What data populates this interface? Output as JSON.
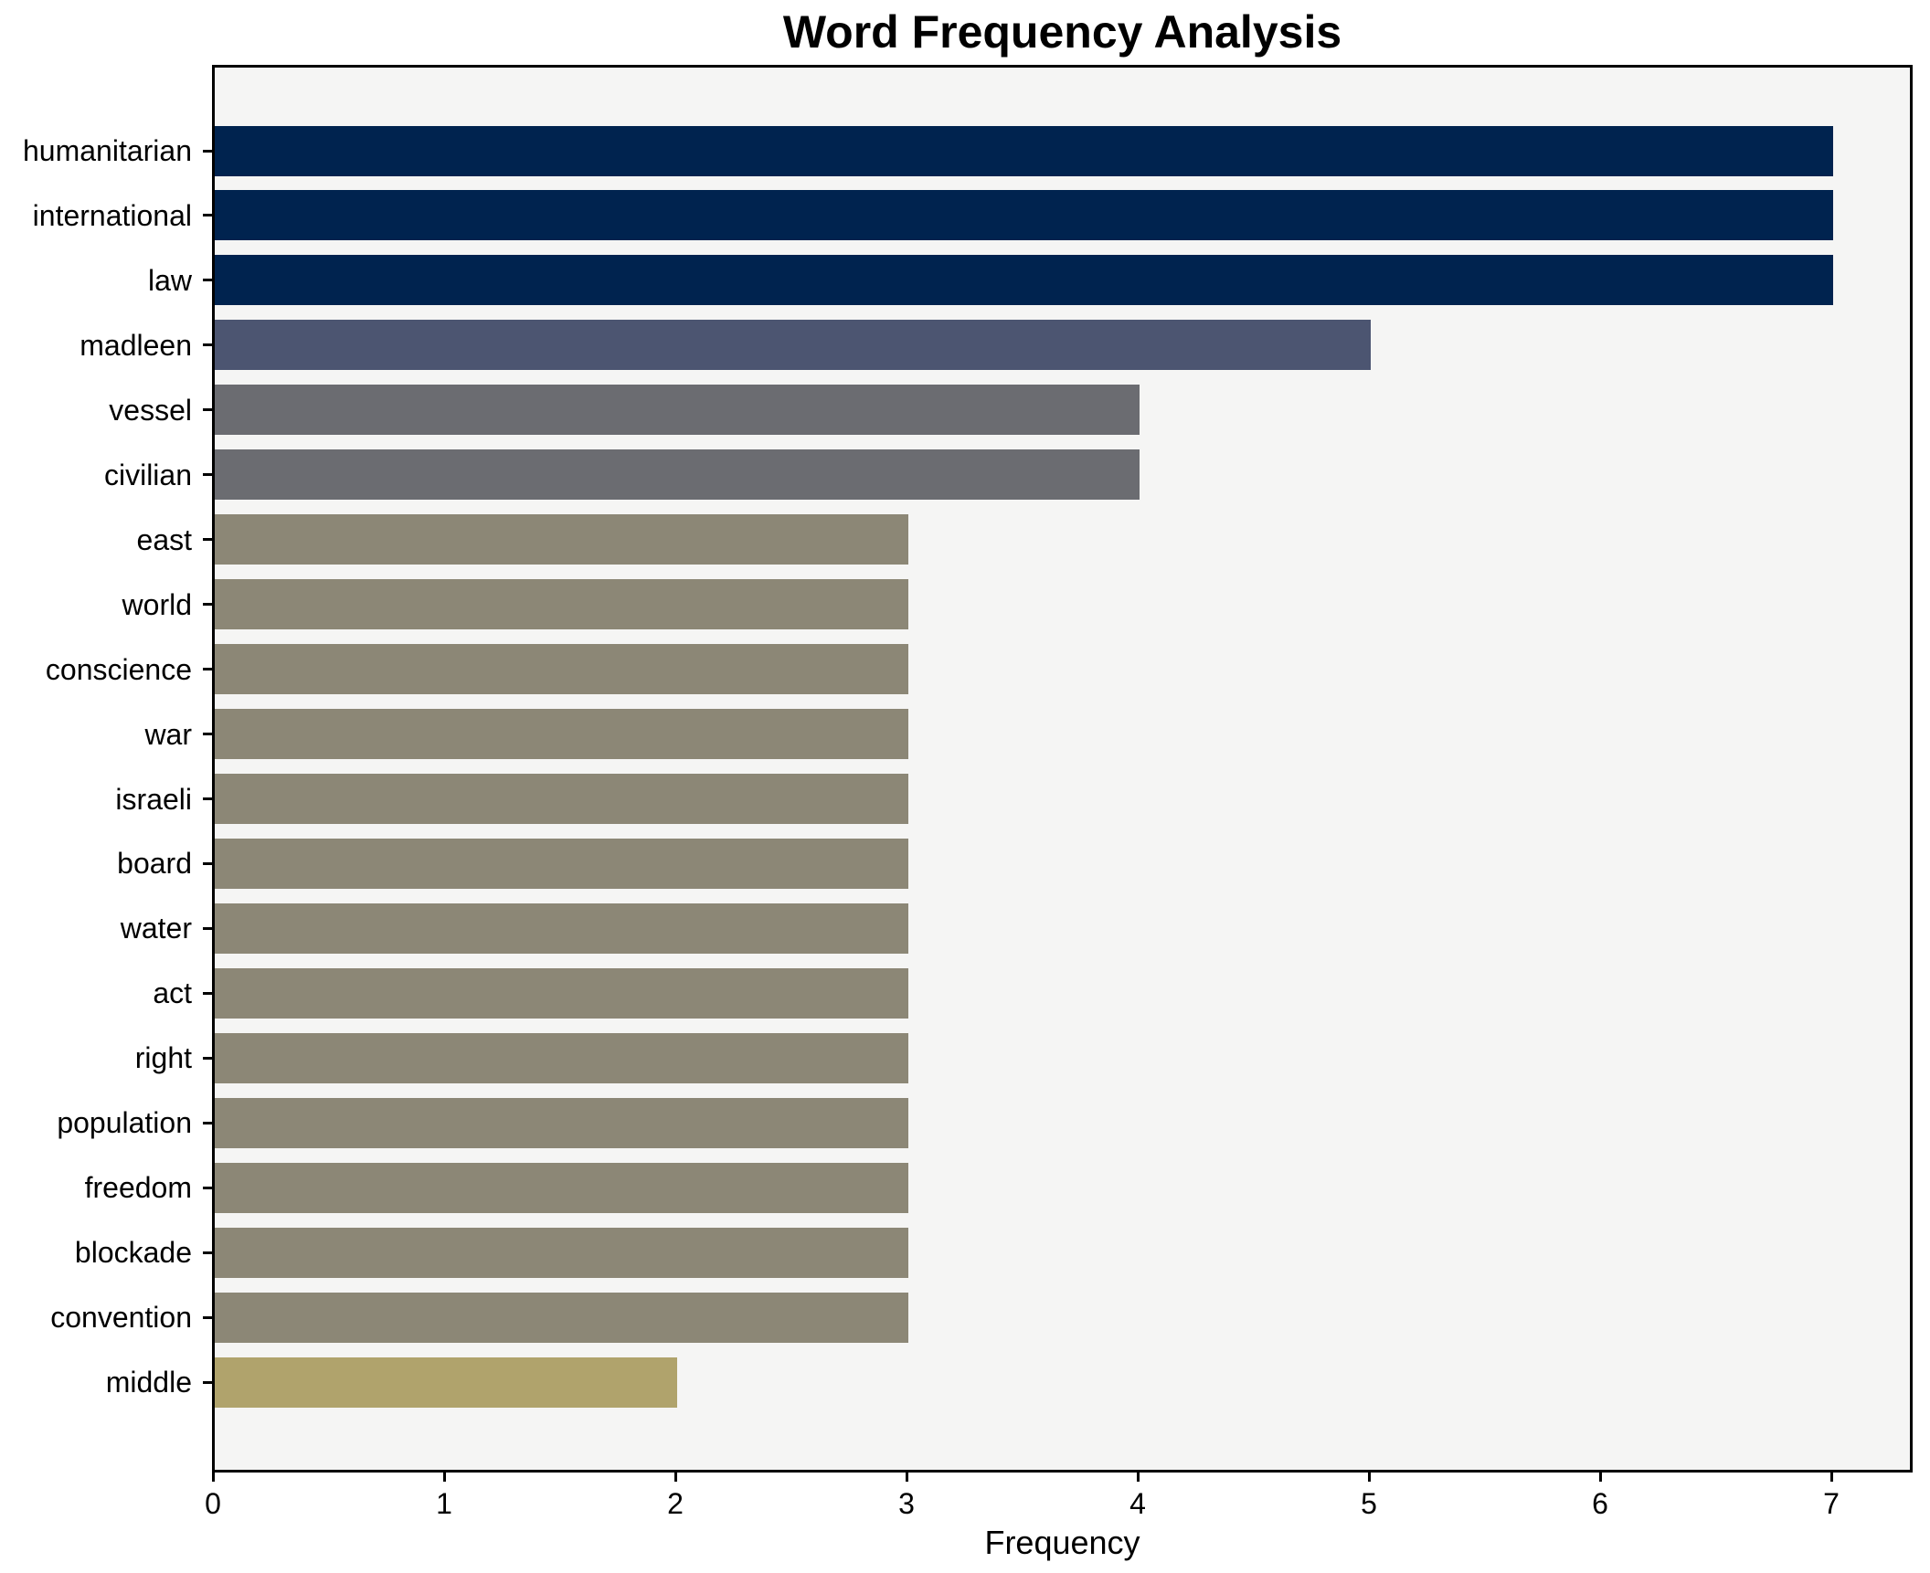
{
  "chart_data": {
    "type": "bar",
    "orientation": "horizontal",
    "title": "Word Frequency Analysis",
    "xlabel": "Frequency",
    "ylabel": "",
    "grid": false,
    "legend": false,
    "xlim": [
      0,
      7.36
    ],
    "x_ticks": [
      0,
      1,
      2,
      3,
      4,
      5,
      6,
      7
    ],
    "categories": [
      "humanitarian",
      "international",
      "law",
      "madleen",
      "vessel",
      "civilian",
      "east",
      "world",
      "conscience",
      "war",
      "israeli",
      "board",
      "water",
      "act",
      "right",
      "population",
      "freedom",
      "blockade",
      "convention",
      "middle"
    ],
    "values": [
      7,
      7,
      7,
      5,
      4,
      4,
      3,
      3,
      3,
      3,
      3,
      3,
      3,
      3,
      3,
      3,
      3,
      3,
      3,
      2
    ],
    "bar_colors": [
      "#00234f",
      "#00234f",
      "#00234f",
      "#4c5571",
      "#6b6c71",
      "#6b6c71",
      "#8c8776",
      "#8c8776",
      "#8c8776",
      "#8c8776",
      "#8c8776",
      "#8c8776",
      "#8c8776",
      "#8c8776",
      "#8c8776",
      "#8c8776",
      "#8c8776",
      "#8c8776",
      "#8c8776",
      "#b0a36c"
    ],
    "colors": {
      "plot_background": "#f5f5f4",
      "figure_background": "#ffffff",
      "axis": "#000000",
      "text": "#000000",
      "value_7": "#00234f",
      "value_5": "#4c5571",
      "value_4": "#6b6c71",
      "value_3": "#8c8776",
      "value_2": "#b0a36c"
    }
  }
}
